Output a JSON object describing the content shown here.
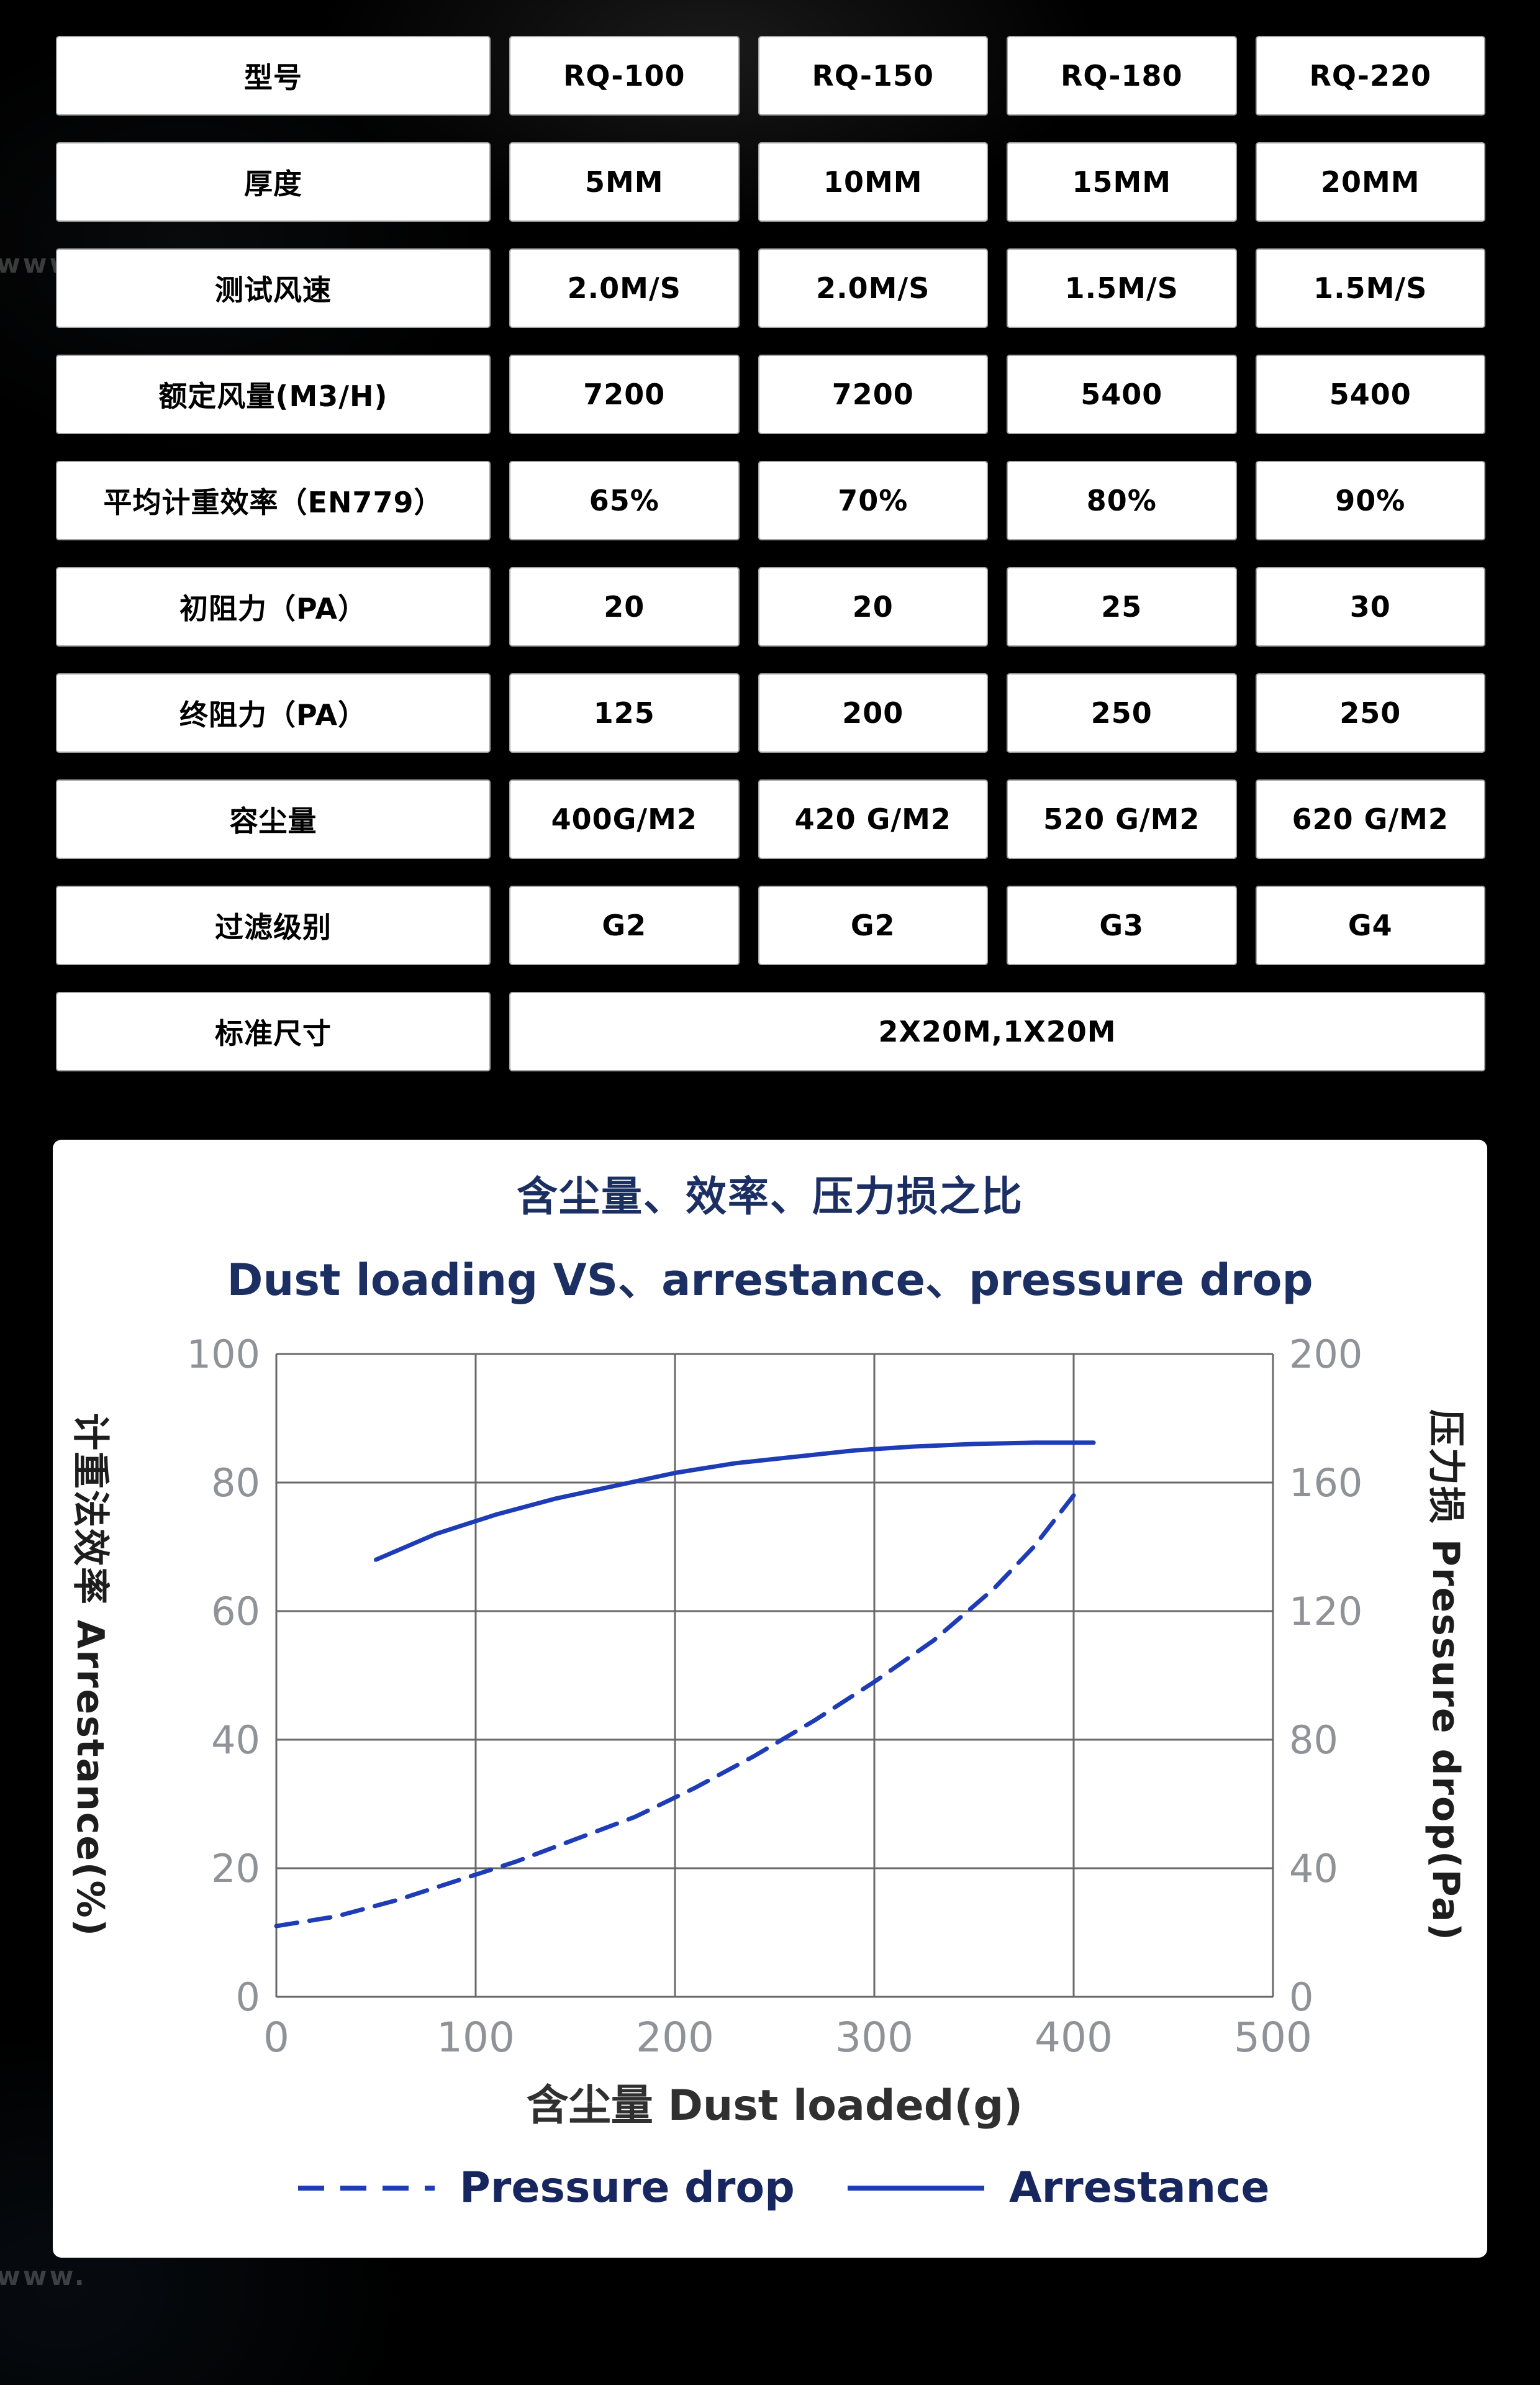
{
  "watermark": "www.",
  "table": {
    "rows": [
      {
        "label": "型号",
        "values": [
          "RQ-100",
          "RQ-150",
          "RQ-180",
          "RQ-220"
        ]
      },
      {
        "label": "厚度",
        "values": [
          "5MM",
          "10MM",
          "15MM",
          "20MM"
        ]
      },
      {
        "label": "测试风速",
        "values": [
          "2.0M/S",
          "2.0M/S",
          "1.5M/S",
          "1.5M/S"
        ]
      },
      {
        "label": "额定风量(M3/H)",
        "values": [
          "7200",
          "7200",
          "5400",
          "5400"
        ]
      },
      {
        "label": "平均计重效率（EN779）",
        "values": [
          "65%",
          "70%",
          "80%",
          "90%"
        ]
      },
      {
        "label": "初阻力（PA）",
        "values": [
          "20",
          "20",
          "25",
          "30"
        ]
      },
      {
        "label": "终阻力（PA）",
        "values": [
          "125",
          "200",
          "250",
          "250"
        ]
      },
      {
        "label": "容尘量",
        "values": [
          "400G/M2",
          "420 G/M2",
          "520 G/M2",
          "620 G/M2"
        ]
      },
      {
        "label": "过滤级别",
        "values": [
          "G2",
          "G2",
          "G3",
          "G4"
        ]
      },
      {
        "label": "标准尺寸",
        "values": [
          "2X20M,1X20M"
        ]
      }
    ]
  },
  "chart_data": {
    "type": "line",
    "title": "含尘量、效率、压力损之比",
    "subtitle": "Dust loading VS、arrestance、pressure drop",
    "xlabel": "含尘量 Dust loaded(g)",
    "ylabel_left": "计重法效率 Arrestance(%)",
    "ylabel_right": "压力损 Pressure drop(Pa)",
    "xlim": [
      0,
      500
    ],
    "xticks": [
      0,
      100,
      200,
      300,
      400,
      500
    ],
    "ylim_left": [
      0,
      100
    ],
    "yticks_left": [
      0,
      20,
      40,
      60,
      80,
      100
    ],
    "ylim_right": [
      0,
      200
    ],
    "yticks_right": [
      0,
      40,
      80,
      120,
      160,
      200
    ],
    "grid": true,
    "legend_position": "bottom",
    "colors": {
      "line": "#1d3cb5",
      "legend_text": "#17265e",
      "tick_text": "#8f9398",
      "grid": "#6a6a6a"
    },
    "series": [
      {
        "name": "Pressure drop",
        "axis": "right",
        "style": "dashed",
        "points": [
          [
            0,
            22
          ],
          [
            30,
            25
          ],
          [
            60,
            30
          ],
          [
            90,
            36
          ],
          [
            120,
            42
          ],
          [
            150,
            49
          ],
          [
            180,
            56
          ],
          [
            210,
            65
          ],
          [
            240,
            75
          ],
          [
            270,
            86
          ],
          [
            300,
            98
          ],
          [
            330,
            111
          ],
          [
            360,
            127
          ],
          [
            380,
            140
          ],
          [
            400,
            156
          ]
        ]
      },
      {
        "name": "Arrestance",
        "axis": "left",
        "style": "solid",
        "points": [
          [
            50,
            68
          ],
          [
            80,
            72
          ],
          [
            110,
            75
          ],
          [
            140,
            77.5
          ],
          [
            170,
            79.5
          ],
          [
            200,
            81.5
          ],
          [
            230,
            83
          ],
          [
            260,
            84
          ],
          [
            290,
            85
          ],
          [
            320,
            85.6
          ],
          [
            350,
            86
          ],
          [
            380,
            86.2
          ],
          [
            410,
            86.2
          ]
        ]
      }
    ]
  }
}
